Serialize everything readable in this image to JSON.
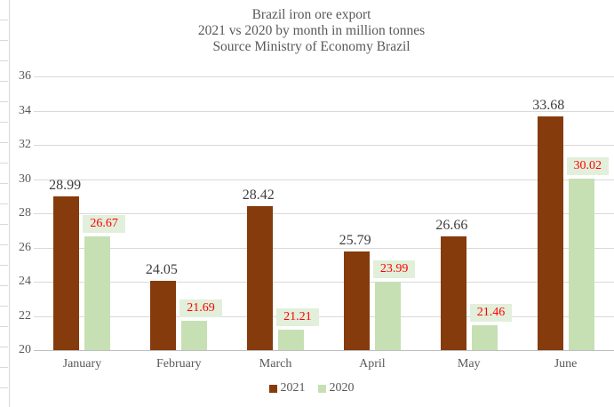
{
  "title": {
    "line1": "Brazil iron ore export",
    "line2": "2021 vs 2020 by month in million tonnes",
    "line3": "Source Ministry of Economy Brazil"
  },
  "chart_data": {
    "type": "bar",
    "categories": [
      "January",
      "February",
      "March",
      "April",
      "May",
      "June"
    ],
    "series": [
      {
        "name": "2021",
        "color": "#853B0C",
        "values": [
          28.99,
          24.05,
          28.42,
          25.79,
          26.66,
          33.68
        ]
      },
      {
        "name": "2020",
        "color": "#C6E0B4",
        "values": [
          26.67,
          21.69,
          21.21,
          23.99,
          21.46,
          30.02
        ]
      }
    ],
    "data_labels": {
      "series_2021": [
        "28.99",
        "24.05",
        "28.42",
        "25.79",
        "26.66",
        "33.68"
      ],
      "series_2020": [
        "26.67",
        "21.69",
        "21.21",
        "23.99",
        "21.46",
        "30.02"
      ]
    },
    "title": "Brazil iron ore export 2021 vs 2020 by month in million tonnes Source Ministry of Economy Brazil",
    "xlabel": "",
    "ylabel": "",
    "ylim": [
      20,
      36
    ],
    "ytick_step": 2,
    "yticks": [
      36,
      34,
      32,
      30,
      28,
      26,
      24,
      22,
      20
    ],
    "grid": "horizontal",
    "legend_position": "bottom",
    "colors": {
      "label_2021_text": "#404040",
      "label_2020_text": "#FF0000",
      "label_2020_background": "#E2EFDA",
      "gridline": "#D9D9D9",
      "axis_line": "#BFBFBF",
      "text": "#595959"
    }
  },
  "legend": {
    "items": [
      {
        "label": "2021",
        "color": "#853B0C"
      },
      {
        "label": "2020",
        "color": "#C6E0B4"
      }
    ]
  }
}
